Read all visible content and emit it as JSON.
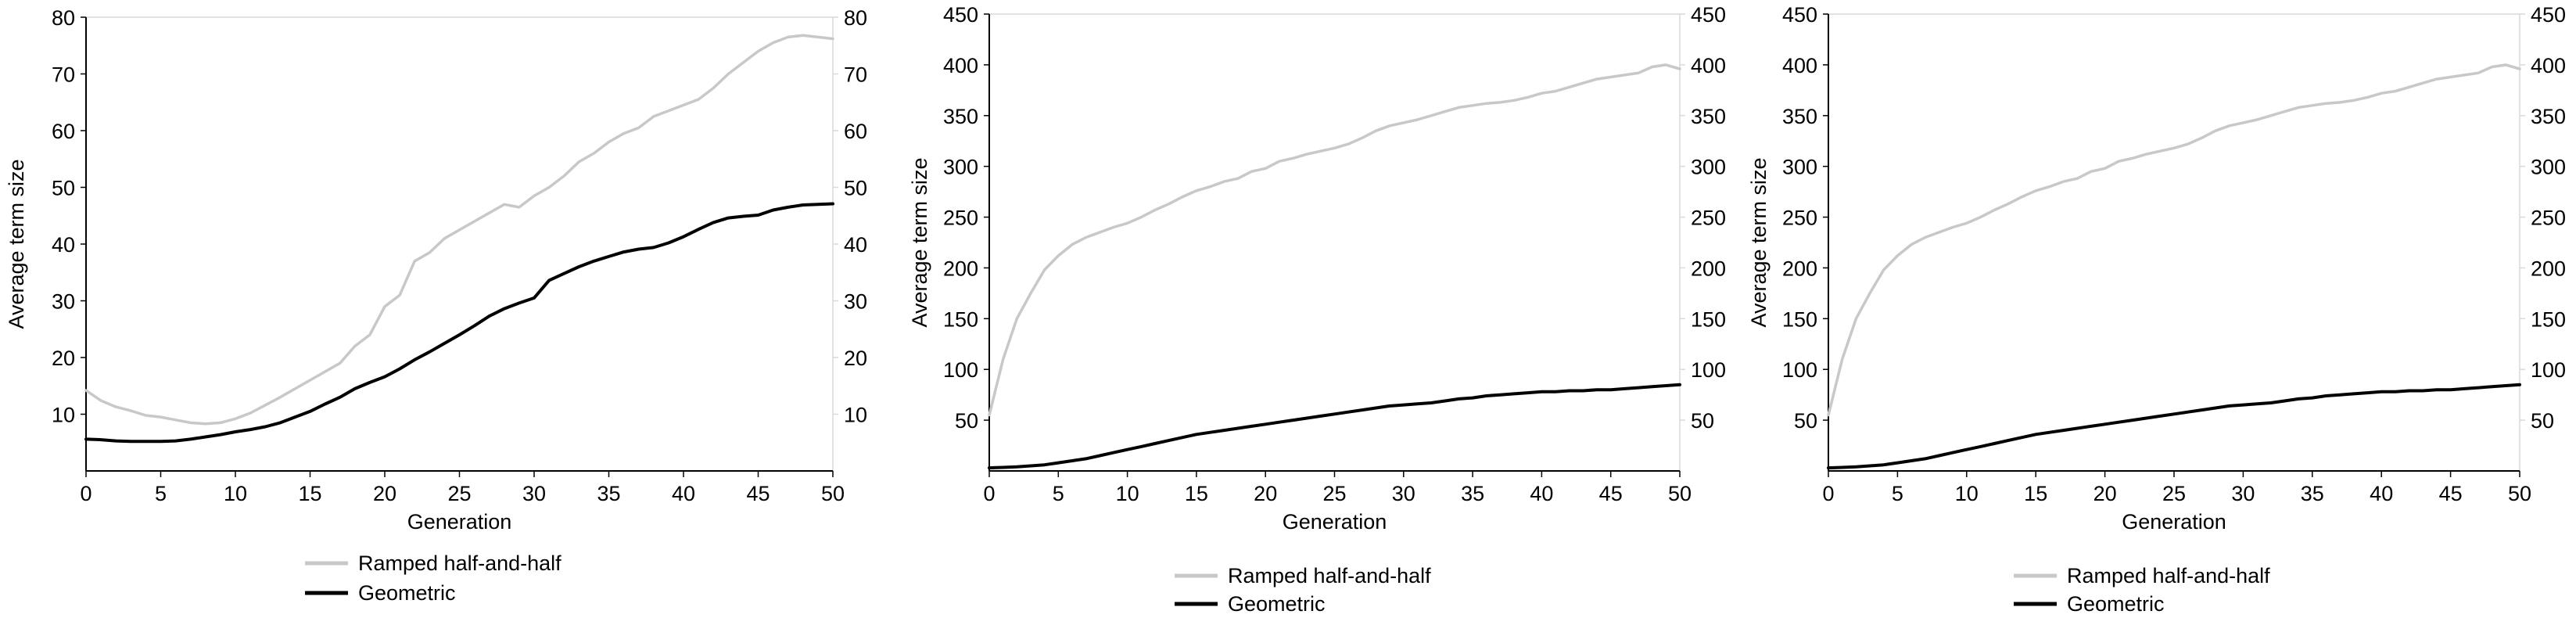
{
  "colors": {
    "ramped": "#c8c8c8",
    "geometric": "#000000",
    "axis": "#000000",
    "frame": "#d9d9d9"
  },
  "chart_data": [
    {
      "type": "line",
      "title": "",
      "xlabel": "Generation",
      "ylabel": "Average term size",
      "xlim": [
        0,
        50
      ],
      "ylim": [
        0,
        80
      ],
      "x_ticks": [
        0,
        5,
        10,
        15,
        20,
        25,
        30,
        35,
        40,
        45,
        50
      ],
      "y_ticks": [
        10,
        20,
        30,
        40,
        50,
        60,
        70,
        80
      ],
      "y2_ticks": [
        10,
        20,
        30,
        40,
        50,
        60,
        70,
        80
      ],
      "grid": false,
      "legend_position": "bottom",
      "series": [
        {
          "name": "Ramped half-and-half",
          "color": "#c8c8c8",
          "x": [
            0,
            1,
            2,
            3,
            4,
            5,
            6,
            7,
            8,
            9,
            10,
            11,
            12,
            13,
            14,
            15,
            16,
            17,
            18,
            19,
            20,
            21,
            22,
            23,
            24,
            25,
            26,
            27,
            28,
            29,
            30,
            31,
            32,
            33,
            34,
            35,
            36,
            37,
            38,
            39,
            40,
            41,
            42,
            43,
            44,
            45,
            46,
            47,
            48,
            49,
            50
          ],
          "values": [
            14.2,
            12.4,
            11.3,
            10.6,
            9.8,
            9.5,
            9.0,
            8.5,
            8.3,
            8.5,
            9.2,
            10.2,
            11.6,
            13.0,
            14.5,
            16.0,
            17.5,
            19.0,
            22.0,
            24.0,
            29.0,
            31.0,
            37.0,
            38.5,
            41.0,
            42.5,
            44.0,
            45.5,
            47.0,
            46.5,
            48.5,
            50.0,
            52.0,
            54.5,
            56.0,
            58.0,
            59.5,
            60.5,
            62.5,
            63.5,
            64.5,
            65.5,
            67.5,
            70.0,
            72.0,
            74.0,
            75.5,
            76.5,
            76.8,
            76.5,
            76.2
          ]
        },
        {
          "name": "Geometric",
          "color": "#000000",
          "x": [
            0,
            1,
            2,
            3,
            4,
            5,
            6,
            7,
            8,
            9,
            10,
            11,
            12,
            13,
            14,
            15,
            16,
            17,
            18,
            19,
            20,
            21,
            22,
            23,
            24,
            25,
            26,
            27,
            28,
            29,
            30,
            31,
            32,
            33,
            34,
            35,
            36,
            37,
            38,
            39,
            40,
            41,
            42,
            43,
            44,
            45,
            46,
            47,
            48,
            49,
            50
          ],
          "values": [
            5.6,
            5.5,
            5.3,
            5.2,
            5.2,
            5.2,
            5.3,
            5.6,
            6.0,
            6.4,
            6.9,
            7.3,
            7.8,
            8.5,
            9.5,
            10.5,
            11.8,
            13.0,
            14.5,
            15.6,
            16.6,
            18.0,
            19.6,
            21.0,
            22.5,
            24.0,
            25.6,
            27.3,
            28.6,
            29.6,
            30.5,
            33.6,
            34.8,
            36.0,
            37.0,
            37.8,
            38.6,
            39.1,
            39.4,
            40.2,
            41.3,
            42.6,
            43.8,
            44.6,
            44.9,
            45.1,
            46.0,
            46.5,
            46.9,
            47.0,
            47.1
          ]
        }
      ]
    },
    {
      "type": "line",
      "title": "",
      "xlabel": "Generation",
      "ylabel": "Average term size",
      "xlim": [
        0,
        50
      ],
      "ylim": [
        0,
        450
      ],
      "x_ticks": [
        0,
        5,
        10,
        15,
        20,
        25,
        30,
        35,
        40,
        45,
        50
      ],
      "y_ticks": [
        50,
        100,
        150,
        200,
        250,
        300,
        350,
        400,
        450
      ],
      "y2_ticks": [
        50,
        100,
        150,
        200,
        250,
        300,
        350,
        400,
        450
      ],
      "grid": false,
      "legend_position": "bottom",
      "series": [
        {
          "name": "Ramped half-and-half",
          "color": "#c8c8c8",
          "x": [
            0,
            1,
            2,
            3,
            4,
            5,
            6,
            7,
            8,
            9,
            10,
            11,
            12,
            13,
            14,
            15,
            16,
            17,
            18,
            19,
            20,
            21,
            22,
            23,
            24,
            25,
            26,
            27,
            28,
            29,
            30,
            31,
            32,
            33,
            34,
            35,
            36,
            37,
            38,
            39,
            40,
            41,
            42,
            43,
            44,
            45,
            46,
            47,
            48,
            49,
            50
          ],
          "values": [
            55,
            110,
            150,
            175,
            198,
            212,
            223,
            230,
            235,
            240,
            244,
            250,
            257,
            263,
            270,
            276,
            280,
            285,
            288,
            295,
            298,
            305,
            308,
            312,
            315,
            318,
            322,
            328,
            335,
            340,
            343,
            346,
            350,
            354,
            358,
            360,
            362,
            363,
            365,
            368,
            372,
            374,
            378,
            382,
            386,
            388,
            390,
            392,
            398,
            400,
            396
          ]
        },
        {
          "name": "Geometric",
          "color": "#000000",
          "x": [
            0,
            1,
            2,
            3,
            4,
            5,
            6,
            7,
            8,
            9,
            10,
            11,
            12,
            13,
            14,
            15,
            16,
            17,
            18,
            19,
            20,
            21,
            22,
            23,
            24,
            25,
            26,
            27,
            28,
            29,
            30,
            31,
            32,
            33,
            34,
            35,
            36,
            37,
            38,
            39,
            40,
            41,
            42,
            43,
            44,
            45,
            46,
            47,
            48,
            49,
            50
          ],
          "values": [
            3,
            3.5,
            4,
            5,
            6,
            8,
            10,
            12,
            15,
            18,
            21,
            24,
            27,
            30,
            33,
            36,
            38,
            40,
            42,
            44,
            46,
            48,
            50,
            52,
            54,
            56,
            58,
            60,
            62,
            64,
            65,
            66,
            67,
            69,
            71,
            72,
            74,
            75,
            76,
            77,
            78,
            78,
            79,
            79,
            80,
            80,
            81,
            82,
            83,
            84,
            85
          ]
        }
      ]
    },
    {
      "type": "line",
      "title": "",
      "xlabel": "Generation",
      "ylabel": "Average term size",
      "xlim": [
        0,
        50
      ],
      "ylim": [
        0,
        450
      ],
      "x_ticks": [
        0,
        5,
        10,
        15,
        20,
        25,
        30,
        35,
        40,
        45,
        50
      ],
      "y_ticks": [
        50,
        100,
        150,
        200,
        250,
        300,
        350,
        400,
        450
      ],
      "y2_ticks": [
        50,
        100,
        150,
        200,
        250,
        300,
        350,
        400,
        450
      ],
      "grid": false,
      "legend_position": "bottom",
      "series": [
        {
          "name": "Ramped half-and-half",
          "color": "#c8c8c8",
          "x": [
            0,
            1,
            2,
            3,
            4,
            5,
            6,
            7,
            8,
            9,
            10,
            11,
            12,
            13,
            14,
            15,
            16,
            17,
            18,
            19,
            20,
            21,
            22,
            23,
            24,
            25,
            26,
            27,
            28,
            29,
            30,
            31,
            32,
            33,
            34,
            35,
            36,
            37,
            38,
            39,
            40,
            41,
            42,
            43,
            44,
            45,
            46,
            47,
            48,
            49,
            50
          ],
          "values": [
            55,
            110,
            150,
            175,
            198,
            212,
            223,
            230,
            235,
            240,
            244,
            250,
            257,
            263,
            270,
            276,
            280,
            285,
            288,
            295,
            298,
            305,
            308,
            312,
            315,
            318,
            322,
            328,
            335,
            340,
            343,
            346,
            350,
            354,
            358,
            360,
            362,
            363,
            365,
            368,
            372,
            374,
            378,
            382,
            386,
            388,
            390,
            392,
            398,
            400,
            396
          ]
        },
        {
          "name": "Geometric",
          "color": "#000000",
          "x": [
            0,
            1,
            2,
            3,
            4,
            5,
            6,
            7,
            8,
            9,
            10,
            11,
            12,
            13,
            14,
            15,
            16,
            17,
            18,
            19,
            20,
            21,
            22,
            23,
            24,
            25,
            26,
            27,
            28,
            29,
            30,
            31,
            32,
            33,
            34,
            35,
            36,
            37,
            38,
            39,
            40,
            41,
            42,
            43,
            44,
            45,
            46,
            47,
            48,
            49,
            50
          ],
          "values": [
            3,
            3.5,
            4,
            5,
            6,
            8,
            10,
            12,
            15,
            18,
            21,
            24,
            27,
            30,
            33,
            36,
            38,
            40,
            42,
            44,
            46,
            48,
            50,
            52,
            54,
            56,
            58,
            60,
            62,
            64,
            65,
            66,
            67,
            69,
            71,
            72,
            74,
            75,
            76,
            77,
            78,
            78,
            79,
            79,
            80,
            80,
            81,
            82,
            83,
            84,
            85
          ]
        }
      ]
    }
  ]
}
